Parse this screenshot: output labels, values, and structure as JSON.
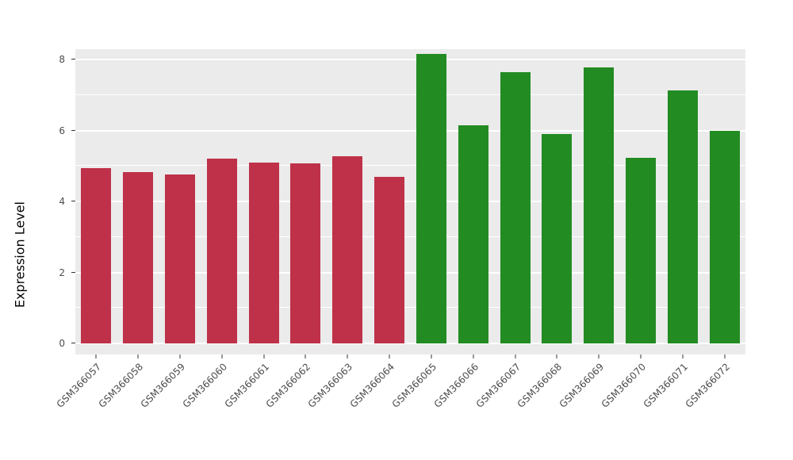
{
  "chart_data": {
    "type": "bar",
    "title": "",
    "xlabel": "",
    "ylabel": "Expression Level",
    "ylim": [
      0,
      8
    ],
    "yticks_major": [
      0,
      2,
      4,
      6,
      8
    ],
    "yticks_minor": [
      1,
      3,
      5,
      7
    ],
    "grid": "on",
    "legend": "none",
    "categories": [
      "GSM366057",
      "GSM366058",
      "GSM366059",
      "GSM366060",
      "GSM366061",
      "GSM366062",
      "GSM366063",
      "GSM366064",
      "GSM366065",
      "GSM366066",
      "GSM366067",
      "GSM366068",
      "GSM366069",
      "GSM366070",
      "GSM366071",
      "GSM366072"
    ],
    "values": [
      4.93,
      4.82,
      4.75,
      5.2,
      5.1,
      5.07,
      5.28,
      4.7,
      8.15,
      6.15,
      7.65,
      5.9,
      7.78,
      5.22,
      7.12,
      6.0
    ],
    "colors": [
      "#BE3149",
      "#BE3149",
      "#BE3149",
      "#BE3149",
      "#BE3149",
      "#BE3149",
      "#BE3149",
      "#BE3149",
      "#228B22",
      "#228B22",
      "#228B22",
      "#228B22",
      "#228B22",
      "#228B22",
      "#228B22",
      "#228B22"
    ]
  },
  "style": {
    "panel_bg": "#EBEBEB",
    "grid_color": "#FFFFFF",
    "tick_label_color": "#4D4D4D",
    "axis_title_color": "#000000",
    "background": "#FFFFFF"
  }
}
